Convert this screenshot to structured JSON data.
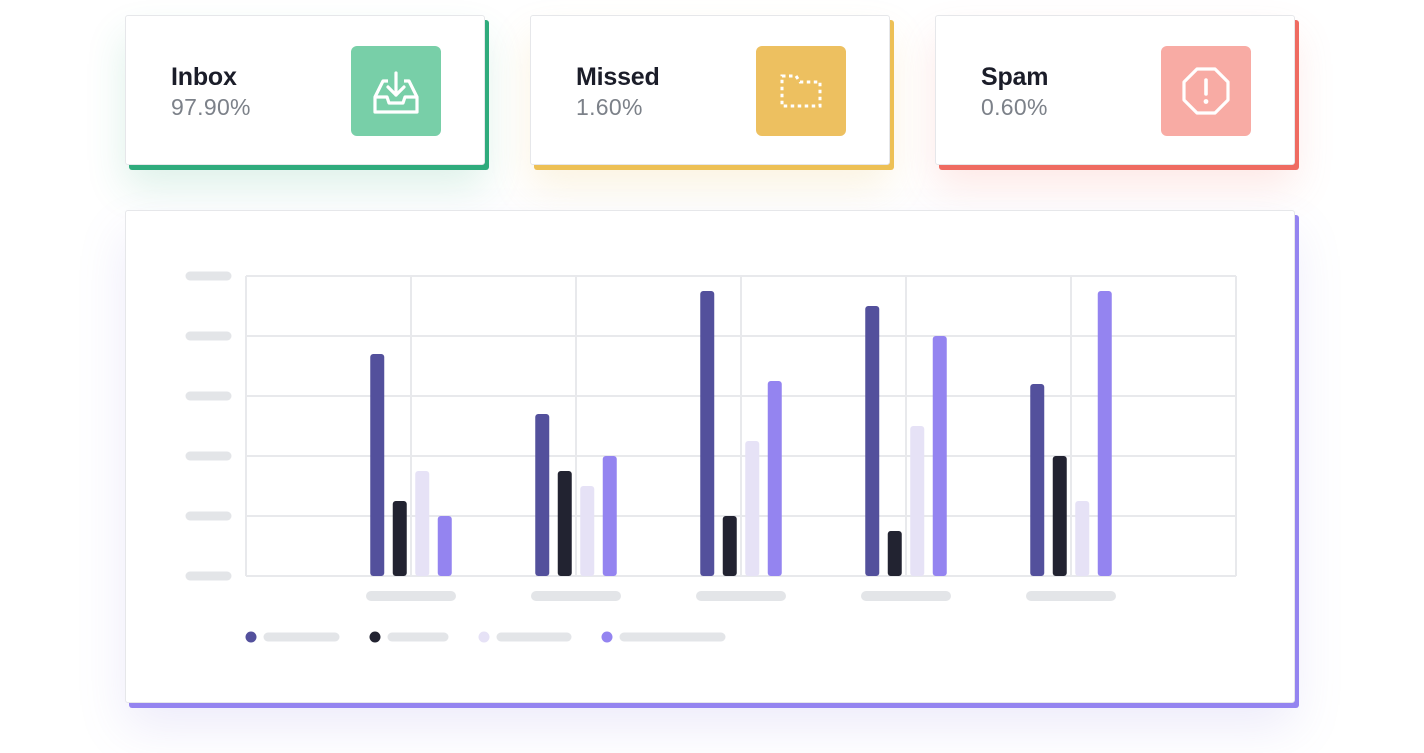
{
  "stats": [
    {
      "title": "Inbox",
      "value": "97.90%",
      "accent": "#2fab7c",
      "icon_bg": "#78cfa8",
      "icon": "inbox-download-icon"
    },
    {
      "title": "Missed",
      "value": "1.60%",
      "accent": "#edc055",
      "icon_bg": "#edc060",
      "icon": "dashed-folder-icon"
    },
    {
      "title": "Spam",
      "value": "0.60%",
      "accent": "#ef6b61",
      "icon_bg": "#f8aba4",
      "icon": "octagon-alert-icon"
    }
  ],
  "chart_data": {
    "type": "bar",
    "categories": [
      "",
      "",
      "",
      "",
      ""
    ],
    "ylim": [
      0,
      5
    ],
    "grid": true,
    "legend_position": "bottom-left",
    "series": [
      {
        "color": "#53509c",
        "values": [
          3.7,
          2.7,
          4.75,
          4.5,
          3.2
        ]
      },
      {
        "color": "#222331",
        "values": [
          1.25,
          1.75,
          1.0,
          0.75,
          2.0
        ]
      },
      {
        "color": "#e6e2f6",
        "values": [
          1.75,
          1.5,
          2.25,
          2.5,
          1.25
        ]
      },
      {
        "color": "#9484f0",
        "values": [
          1.0,
          2.0,
          3.25,
          4.0,
          4.75
        ]
      }
    ]
  }
}
